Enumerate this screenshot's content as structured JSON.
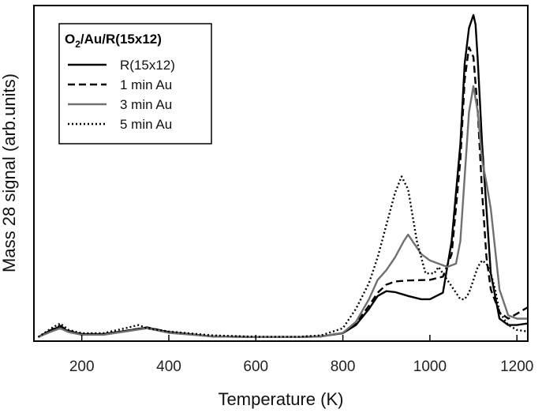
{
  "chart_data": {
    "type": "line",
    "title": "",
    "xlabel": "Temperature  (K)",
    "ylabel": "Mass 28 signal  (arb.units)",
    "xlim": [
      90,
      1225
    ],
    "ylim": [
      0,
      1.0
    ],
    "xticks": [
      200,
      400,
      600,
      800,
      1000,
      1200
    ],
    "grid": false,
    "legend": {
      "placement": "top-left",
      "title_main": "O",
      "title_sub": "2",
      "title_rest": "/Au/R(15x12)"
    },
    "series": [
      {
        "name": "R(15x12)",
        "color": "#000000",
        "dash": "solid",
        "x": [
          100,
          130,
          150,
          170,
          200,
          250,
          300,
          350,
          400,
          500,
          600,
          700,
          750,
          800,
          830,
          860,
          880,
          900,
          920,
          950,
          980,
          1000,
          1030,
          1050,
          1070,
          1080,
          1090,
          1100,
          1105,
          1110,
          1120,
          1140,
          1160,
          1180,
          1200,
          1225
        ],
        "y": [
          0.003,
          0.025,
          0.035,
          0.02,
          0.012,
          0.012,
          0.022,
          0.032,
          0.018,
          0.005,
          0.003,
          0.003,
          0.005,
          0.015,
          0.04,
          0.09,
          0.13,
          0.145,
          0.142,
          0.13,
          0.12,
          0.12,
          0.14,
          0.3,
          0.6,
          0.85,
          0.96,
          1.0,
          0.97,
          0.86,
          0.6,
          0.2,
          0.06,
          0.04,
          0.04,
          0.045
        ]
      },
      {
        "name": "1 min Au",
        "color": "#000000",
        "dash": "dashed",
        "x": [
          100,
          130,
          150,
          170,
          200,
          250,
          300,
          350,
          400,
          500,
          600,
          700,
          750,
          800,
          830,
          860,
          880,
          900,
          920,
          950,
          1000,
          1030,
          1050,
          1070,
          1080,
          1090,
          1100,
          1110,
          1120,
          1130,
          1140,
          1160,
          1180,
          1200,
          1225
        ],
        "y": [
          0.003,
          0.025,
          0.038,
          0.022,
          0.012,
          0.012,
          0.022,
          0.033,
          0.018,
          0.005,
          0.003,
          0.003,
          0.005,
          0.016,
          0.045,
          0.1,
          0.14,
          0.165,
          0.175,
          0.178,
          0.18,
          0.19,
          0.26,
          0.55,
          0.8,
          0.9,
          0.87,
          0.7,
          0.45,
          0.25,
          0.15,
          0.08,
          0.06,
          0.075,
          0.095
        ]
      },
      {
        "name": "3 min Au",
        "color": "#707070",
        "dash": "solid",
        "x": [
          100,
          130,
          150,
          170,
          200,
          250,
          300,
          350,
          400,
          500,
          600,
          700,
          750,
          800,
          830,
          860,
          880,
          900,
          920,
          940,
          950,
          960,
          980,
          1000,
          1020,
          1040,
          1060,
          1070,
          1080,
          1090,
          1100,
          1110,
          1120,
          1130,
          1140,
          1160,
          1180,
          1200,
          1225
        ],
        "y": [
          0.003,
          0.02,
          0.03,
          0.018,
          0.01,
          0.01,
          0.02,
          0.03,
          0.016,
          0.005,
          0.003,
          0.003,
          0.005,
          0.016,
          0.05,
          0.12,
          0.18,
          0.21,
          0.25,
          0.3,
          0.32,
          0.3,
          0.26,
          0.24,
          0.23,
          0.22,
          0.23,
          0.3,
          0.5,
          0.7,
          0.78,
          0.7,
          0.55,
          0.48,
          0.4,
          0.15,
          0.07,
          0.06,
          0.06
        ]
      },
      {
        "name": "5 min Au",
        "color": "#000000",
        "dash": "dotted",
        "x": [
          100,
          130,
          150,
          170,
          200,
          250,
          300,
          330,
          350,
          400,
          500,
          600,
          700,
          750,
          800,
          830,
          860,
          880,
          900,
          920,
          935,
          950,
          970,
          990,
          1010,
          1020,
          1030,
          1050,
          1070,
          1080,
          1090,
          1100,
          1110,
          1120,
          1130,
          1140,
          1150,
          1160,
          1180,
          1200,
          1225
        ],
        "y": [
          0.003,
          0.03,
          0.045,
          0.025,
          0.015,
          0.015,
          0.03,
          0.04,
          0.03,
          0.02,
          0.008,
          0.004,
          0.004,
          0.008,
          0.03,
          0.09,
          0.17,
          0.25,
          0.35,
          0.45,
          0.5,
          0.46,
          0.3,
          0.2,
          0.2,
          0.22,
          0.2,
          0.16,
          0.12,
          0.12,
          0.14,
          0.18,
          0.22,
          0.24,
          0.23,
          0.2,
          0.15,
          0.08,
          0.04,
          0.025,
          0.02
        ]
      }
    ]
  }
}
